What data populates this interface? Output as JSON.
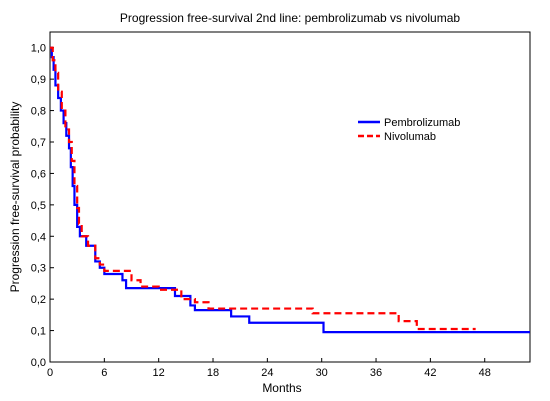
{
  "chart_data": {
    "type": "line",
    "title": "Progression free-survival 2nd line: pembrolizumab vs nivolumab",
    "xlabel": "Months",
    "ylabel": "Progression free-survival probability",
    "xlim": [
      0,
      53
    ],
    "ylim": [
      0,
      1.05
    ],
    "xticks": [
      0,
      6,
      12,
      18,
      24,
      30,
      36,
      42,
      48
    ],
    "yticks": [
      "0,0",
      "0,1",
      "0,2",
      "0,3",
      "0,4",
      "0,5",
      "0,6",
      "0,7",
      "0,8",
      "0,9",
      "1,0"
    ],
    "grid": false,
    "legend_position": "top-right",
    "series": [
      {
        "name": "Pembrolizumab",
        "color": "#0000ff",
        "style": "solid",
        "step_points": [
          [
            0,
            1.0
          ],
          [
            0.2,
            0.97
          ],
          [
            0.4,
            0.93
          ],
          [
            0.6,
            0.88
          ],
          [
            0.9,
            0.84
          ],
          [
            1.2,
            0.8
          ],
          [
            1.5,
            0.76
          ],
          [
            1.8,
            0.72
          ],
          [
            2.1,
            0.68
          ],
          [
            2.3,
            0.62
          ],
          [
            2.5,
            0.56
          ],
          [
            2.7,
            0.5
          ],
          [
            3.0,
            0.43
          ],
          [
            3.3,
            0.4
          ],
          [
            4.0,
            0.37
          ],
          [
            5.0,
            0.32
          ],
          [
            5.5,
            0.3
          ],
          [
            6.0,
            0.28
          ],
          [
            8.0,
            0.26
          ],
          [
            8.4,
            0.235
          ],
          [
            13.5,
            0.235
          ],
          [
            13.8,
            0.21
          ],
          [
            15.5,
            0.18
          ],
          [
            16.0,
            0.165
          ],
          [
            20.0,
            0.145
          ],
          [
            22.0,
            0.125
          ],
          [
            30.2,
            0.095
          ],
          [
            53.0,
            0.095
          ]
        ]
      },
      {
        "name": "Nivolumab",
        "color": "#ff0000",
        "style": "dashed",
        "step_points": [
          [
            0,
            1.0
          ],
          [
            0.3,
            0.96
          ],
          [
            0.6,
            0.92
          ],
          [
            0.9,
            0.86
          ],
          [
            1.3,
            0.8
          ],
          [
            1.7,
            0.74
          ],
          [
            2.1,
            0.7
          ],
          [
            2.4,
            0.64
          ],
          [
            2.7,
            0.56
          ],
          [
            3.0,
            0.49
          ],
          [
            3.2,
            0.44
          ],
          [
            3.5,
            0.4
          ],
          [
            4.2,
            0.37
          ],
          [
            5.0,
            0.33
          ],
          [
            5.5,
            0.31
          ],
          [
            6.0,
            0.29
          ],
          [
            9.0,
            0.26
          ],
          [
            10.0,
            0.24
          ],
          [
            12.0,
            0.23
          ],
          [
            14.5,
            0.2
          ],
          [
            16.0,
            0.19
          ],
          [
            17.5,
            0.17
          ],
          [
            29.0,
            0.155
          ],
          [
            38.5,
            0.13
          ],
          [
            40.5,
            0.105
          ],
          [
            47.0,
            0.105
          ]
        ]
      }
    ]
  }
}
